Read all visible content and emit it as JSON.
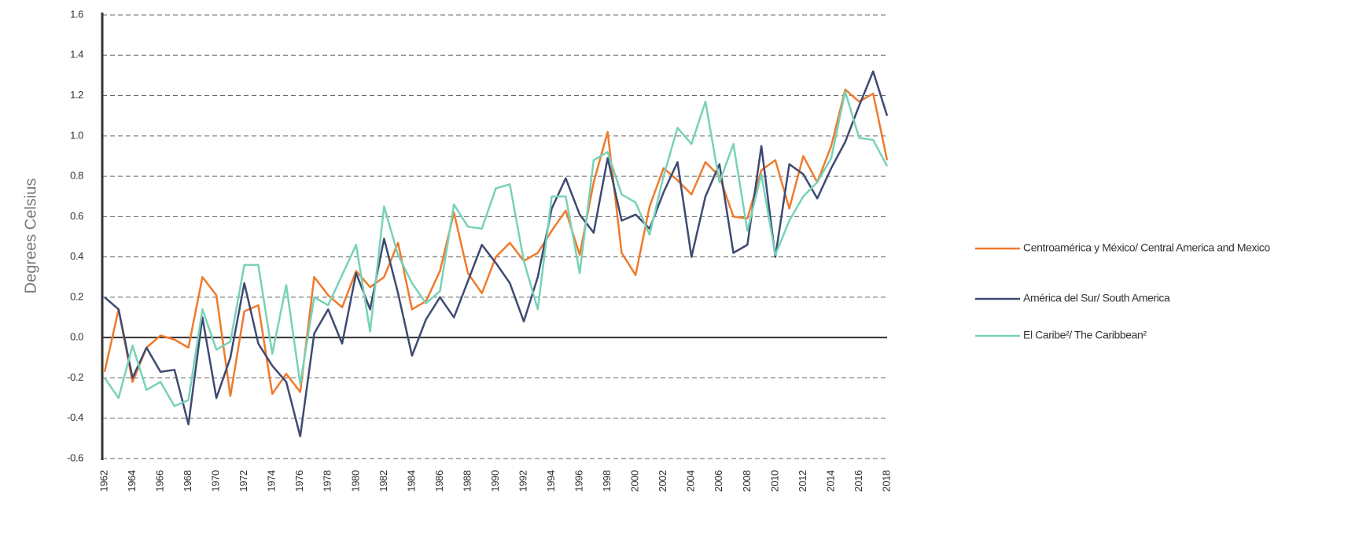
{
  "chart_data": {
    "type": "line",
    "ylabel": "Degrees Celsius",
    "x": [
      1962,
      1963,
      1964,
      1965,
      1966,
      1967,
      1968,
      1969,
      1970,
      1971,
      1972,
      1973,
      1974,
      1975,
      1976,
      1977,
      1978,
      1979,
      1980,
      1981,
      1982,
      1983,
      1984,
      1985,
      1986,
      1987,
      1988,
      1989,
      1990,
      1991,
      1992,
      1993,
      1994,
      1995,
      1996,
      1997,
      1998,
      1999,
      2000,
      2001,
      2002,
      2003,
      2004,
      2005,
      2006,
      2007,
      2008,
      2009,
      2010,
      2011,
      2012,
      2013,
      2014,
      2015,
      2016,
      2017,
      2018
    ],
    "xlim": [
      1962,
      2018
    ],
    "xticks": [
      1962,
      1964,
      1966,
      1968,
      1970,
      1972,
      1974,
      1976,
      1978,
      1980,
      1982,
      1984,
      1986,
      1988,
      1990,
      1992,
      1994,
      1996,
      1998,
      2000,
      2002,
      2004,
      2006,
      2008,
      2010,
      2012,
      2014,
      2016,
      2018
    ],
    "ylim": [
      -0.6,
      1.6
    ],
    "yticks": [
      -0.6,
      -0.4,
      -0.2,
      {
        "value": 0,
        "label": "0.0"
      },
      0.2,
      0.4,
      0.6,
      0.8,
      {
        "value": 1,
        "label": "1.0"
      },
      1.2,
      1.4,
      1.6
    ],
    "grid": true,
    "legend": "right",
    "series": [
      {
        "name": "Centroamérica y México/ Central America and Mexico",
        "color": "#f07a2c",
        "values": [
          -0.17,
          0.14,
          -0.22,
          -0.05,
          0.01,
          -0.01,
          -0.05,
          0.3,
          0.21,
          -0.29,
          0.13,
          0.16,
          -0.28,
          -0.18,
          -0.27,
          0.3,
          0.21,
          0.15,
          0.33,
          0.25,
          0.3,
          0.47,
          0.14,
          0.18,
          0.33,
          0.62,
          0.32,
          0.22,
          0.4,
          0.47,
          0.38,
          0.42,
          0.53,
          0.63,
          0.41,
          0.77,
          1.02,
          0.42,
          0.31,
          0.65,
          0.84,
          0.78,
          0.71,
          0.87,
          0.8,
          0.6,
          0.59,
          0.83,
          0.88,
          0.64,
          0.9,
          0.77,
          0.95,
          1.23,
          1.17,
          1.21,
          0.88
        ]
      },
      {
        "name": "América del Sur/ South America",
        "color": "#3f4a72",
        "values": [
          0.2,
          0.14,
          -0.2,
          -0.05,
          -0.17,
          -0.16,
          -0.43,
          0.1,
          -0.3,
          -0.1,
          0.27,
          -0.03,
          -0.14,
          -0.22,
          -0.49,
          0.02,
          0.14,
          -0.03,
          0.32,
          0.14,
          0.49,
          0.22,
          -0.09,
          0.09,
          0.2,
          0.1,
          0.28,
          0.46,
          0.37,
          0.27,
          0.08,
          0.3,
          0.64,
          0.79,
          0.61,
          0.52,
          0.89,
          0.58,
          0.61,
          0.54,
          0.72,
          0.87,
          0.4,
          0.7,
          0.86,
          0.42,
          0.46,
          0.95,
          0.4,
          0.86,
          0.81,
          0.69,
          0.84,
          0.97,
          1.15,
          1.32,
          1.1
        ]
      },
      {
        "name": "El Caribe²/ The Caribbean²",
        "color": "#77d2b8",
        "values": [
          -0.2,
          -0.3,
          -0.04,
          -0.26,
          -0.22,
          -0.34,
          -0.31,
          0.14,
          -0.06,
          -0.02,
          0.36,
          0.36,
          -0.08,
          0.26,
          -0.23,
          0.2,
          0.16,
          0.31,
          0.46,
          0.03,
          0.65,
          0.41,
          0.27,
          0.17,
          0.23,
          0.66,
          0.55,
          0.54,
          0.74,
          0.76,
          0.38,
          0.14,
          0.7,
          0.7,
          0.32,
          0.88,
          0.92,
          0.71,
          0.67,
          0.51,
          0.8,
          1.04,
          0.96,
          1.17,
          0.77,
          0.96,
          0.53,
          0.81,
          0.41,
          0.58,
          0.7,
          0.77,
          0.89,
          1.22,
          0.99,
          0.98,
          0.85
        ]
      }
    ]
  }
}
